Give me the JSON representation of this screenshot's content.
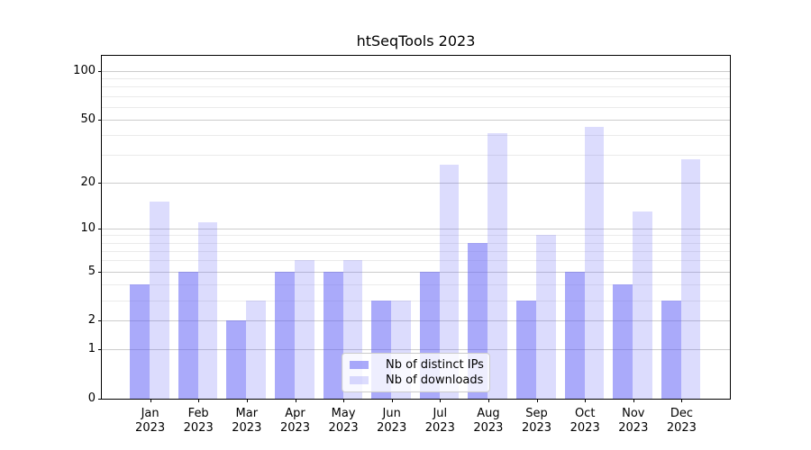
{
  "chart_data": {
    "type": "bar",
    "title": "htSeqTools 2023",
    "categories": [
      "Jan 2023",
      "Feb 2023",
      "Mar 2023",
      "Apr 2023",
      "May 2023",
      "Jun 2023",
      "Jul 2023",
      "Aug 2023",
      "Sep 2023",
      "Oct 2023",
      "Nov 2023",
      "Dec 2023"
    ],
    "series": [
      {
        "name": "Nb of distinct IPs",
        "values": [
          4,
          5,
          2,
          5,
          5,
          3,
          5,
          8,
          3,
          5,
          4,
          3
        ],
        "color": "rgba(95,95,245,0.53)"
      },
      {
        "name": "Nb of downloads",
        "values": [
          15,
          11,
          3,
          6,
          6,
          3,
          26,
          41,
          9,
          45,
          13,
          28
        ],
        "color": "rgba(95,95,245,0.22)"
      }
    ],
    "y_axis": {
      "scale": "log1p",
      "major_ticks": [
        0,
        1,
        2,
        5,
        10,
        20,
        50,
        100
      ],
      "minor_gridlines": [
        3,
        4,
        6,
        7,
        8,
        9,
        30,
        40,
        60,
        70,
        80,
        90
      ],
      "max": 124
    },
    "xlabel": "",
    "ylabel": "",
    "grid": true,
    "legend_position": "lower center"
  },
  "colors": {
    "ips_bar": "rgba(95,95,245,0.53)",
    "downloads_bar": "rgba(95,95,245,0.22)",
    "major_grid": "#cccccc",
    "minor_grid": "#ebebeb",
    "spine": "#000000",
    "background": "#ffffff"
  }
}
